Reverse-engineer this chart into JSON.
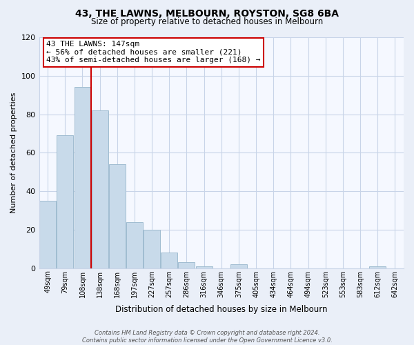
{
  "title": "43, THE LAWNS, MELBOURN, ROYSTON, SG8 6BA",
  "subtitle": "Size of property relative to detached houses in Melbourn",
  "xlabel": "Distribution of detached houses by size in Melbourn",
  "ylabel": "Number of detached properties",
  "categories": [
    "49sqm",
    "79sqm",
    "108sqm",
    "138sqm",
    "168sqm",
    "197sqm",
    "227sqm",
    "257sqm",
    "286sqm",
    "316sqm",
    "346sqm",
    "375sqm",
    "405sqm",
    "434sqm",
    "464sqm",
    "494sqm",
    "523sqm",
    "553sqm",
    "583sqm",
    "612sqm",
    "642sqm"
  ],
  "values": [
    35,
    69,
    94,
    82,
    54,
    24,
    20,
    8,
    3,
    1,
    0,
    2,
    0,
    0,
    0,
    0,
    0,
    0,
    0,
    1,
    0
  ],
  "bar_color": "#c8daea",
  "bar_edge_color": "#a0bcd0",
  "vline_x_index": 3,
  "vline_color": "#cc0000",
  "annotation_text": "43 THE LAWNS: 147sqm\n← 56% of detached houses are smaller (221)\n43% of semi-detached houses are larger (168) →",
  "annotation_box_color": "#ffffff",
  "annotation_box_edge_color": "#cc0000",
  "ylim": [
    0,
    120
  ],
  "yticks": [
    0,
    20,
    40,
    60,
    80,
    100,
    120
  ],
  "footer_line1": "Contains HM Land Registry data © Crown copyright and database right 2024.",
  "footer_line2": "Contains public sector information licensed under the Open Government Licence v3.0.",
  "bg_color": "#eaeff8",
  "plot_bg_color": "#f5f8ff",
  "grid_color": "#c8d4e8"
}
